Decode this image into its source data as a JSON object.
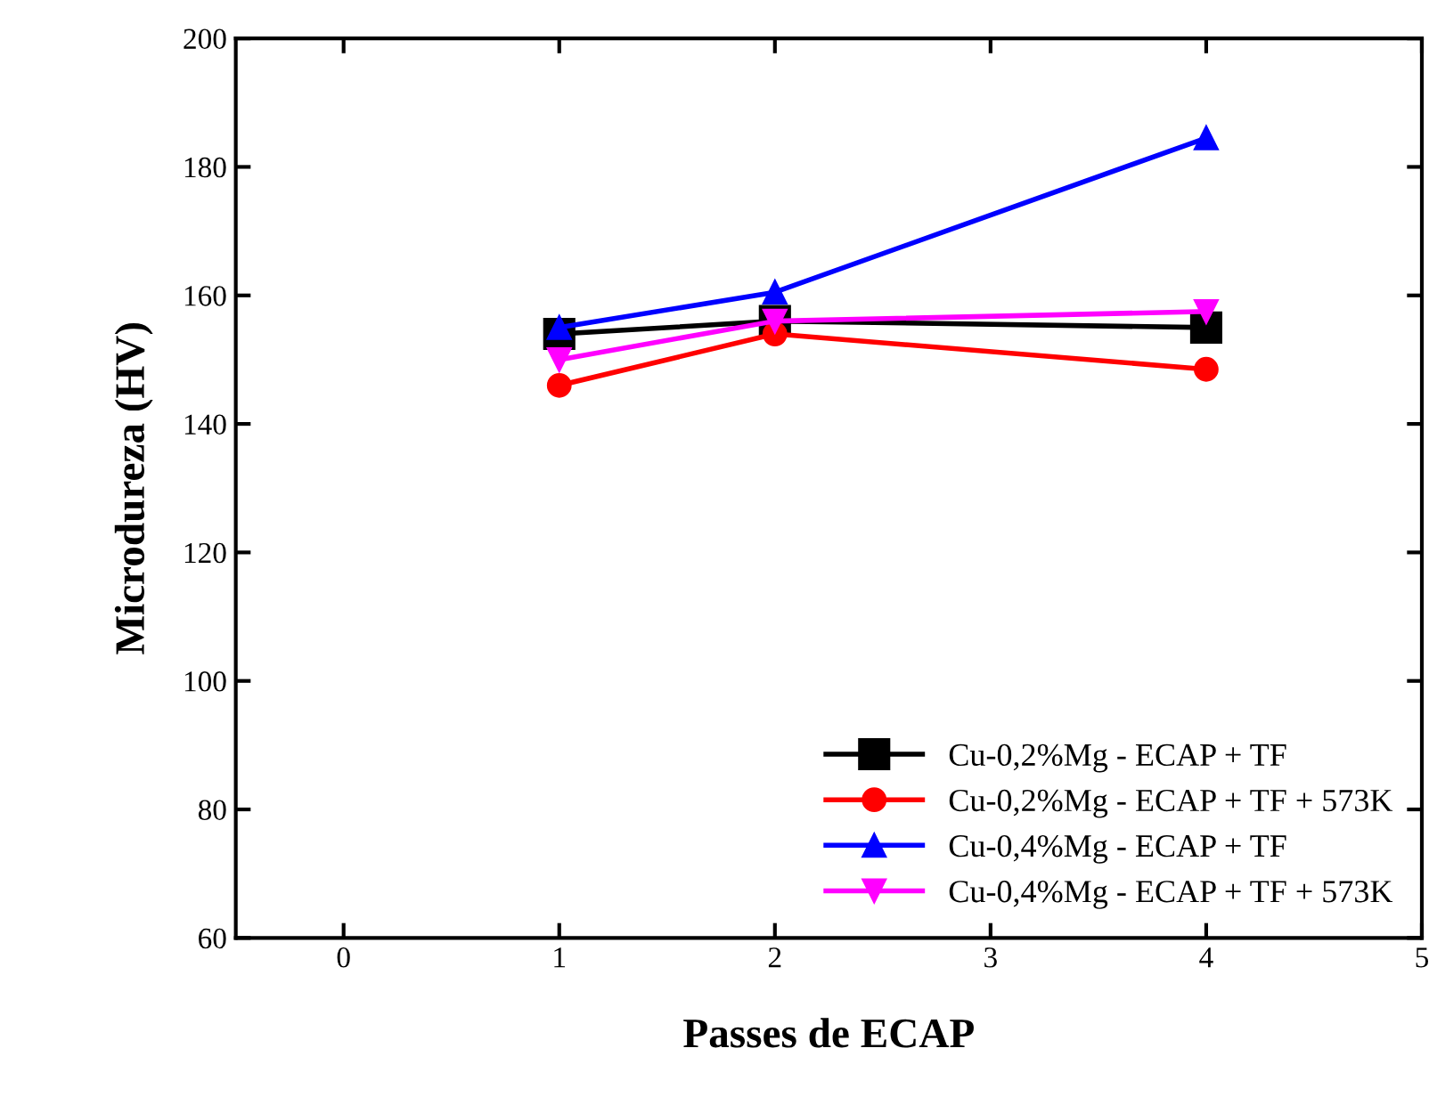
{
  "chart_data": {
    "type": "line",
    "xlabel": "Passes de ECAP",
    "ylabel": "Microdureza (HV)",
    "x": [
      1,
      2,
      4
    ],
    "xlim": [
      -0.5,
      5
    ],
    "xticks": [
      0,
      1,
      2,
      3,
      4,
      5
    ],
    "ylim": [
      60,
      200
    ],
    "yticks": [
      60,
      80,
      100,
      120,
      140,
      160,
      180,
      200
    ],
    "grid": false,
    "legend": "bottom right",
    "line_style": "solid",
    "series": [
      {
        "name": "Cu-0,2%Mg - ECAP + TF",
        "color": "#000000",
        "marker": "square",
        "values": [
          154,
          156,
          155
        ]
      },
      {
        "name": "Cu-0,2%Mg - ECAP + TF + 573K",
        "color": "#ff0000",
        "marker": "circle",
        "values": [
          146,
          154,
          148.5
        ]
      },
      {
        "name": "Cu-0,4%Mg - ECAP + TF",
        "color": "#0000ff",
        "marker": "triangle",
        "values": [
          155,
          160.5,
          184.5
        ]
      },
      {
        "name": "Cu-0,4%Mg - ECAP + TF + 573K",
        "color": "#ff00ff",
        "marker": "triangle_down",
        "values": [
          150,
          156,
          157.5
        ]
      }
    ]
  }
}
